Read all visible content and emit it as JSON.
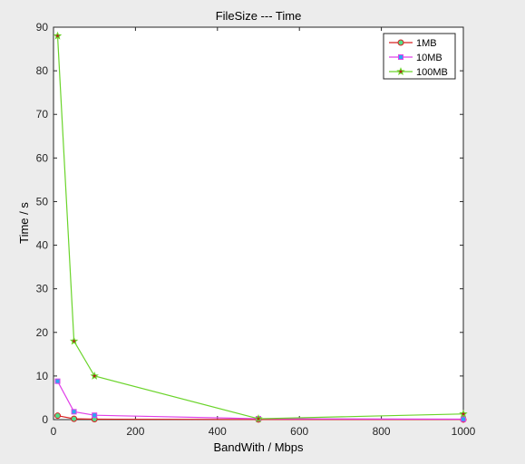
{
  "chart_data": {
    "type": "line",
    "title": "FileSize --- Time",
    "xlabel": "BandWith / Mbps",
    "ylabel": "Time / s",
    "xlim": [
      0,
      1000
    ],
    "ylim": [
      0,
      90
    ],
    "xticks": [
      0,
      200,
      400,
      600,
      800,
      1000
    ],
    "yticks": [
      0,
      10,
      20,
      30,
      40,
      50,
      60,
      70,
      80,
      90
    ],
    "grid": false,
    "legend_position": "top-right",
    "x": [
      10,
      50,
      100,
      500,
      1000
    ],
    "series": [
      {
        "name": "1MB",
        "color": "#d62020",
        "marker": "circle",
        "marker_fill": "#4fe08a",
        "values": [
          0.9,
          0.18,
          0.1,
          0.02,
          0.01
        ]
      },
      {
        "name": "10MB",
        "color": "#e040e8",
        "marker": "square",
        "marker_fill": "#2aa8f0",
        "values": [
          8.8,
          1.8,
          1.0,
          0.2,
          0.1
        ]
      },
      {
        "name": "100MB",
        "color": "#6ad42a",
        "marker": "star",
        "marker_fill": "#b02020",
        "values": [
          88,
          18,
          10,
          0.2,
          1.3
        ]
      }
    ]
  }
}
